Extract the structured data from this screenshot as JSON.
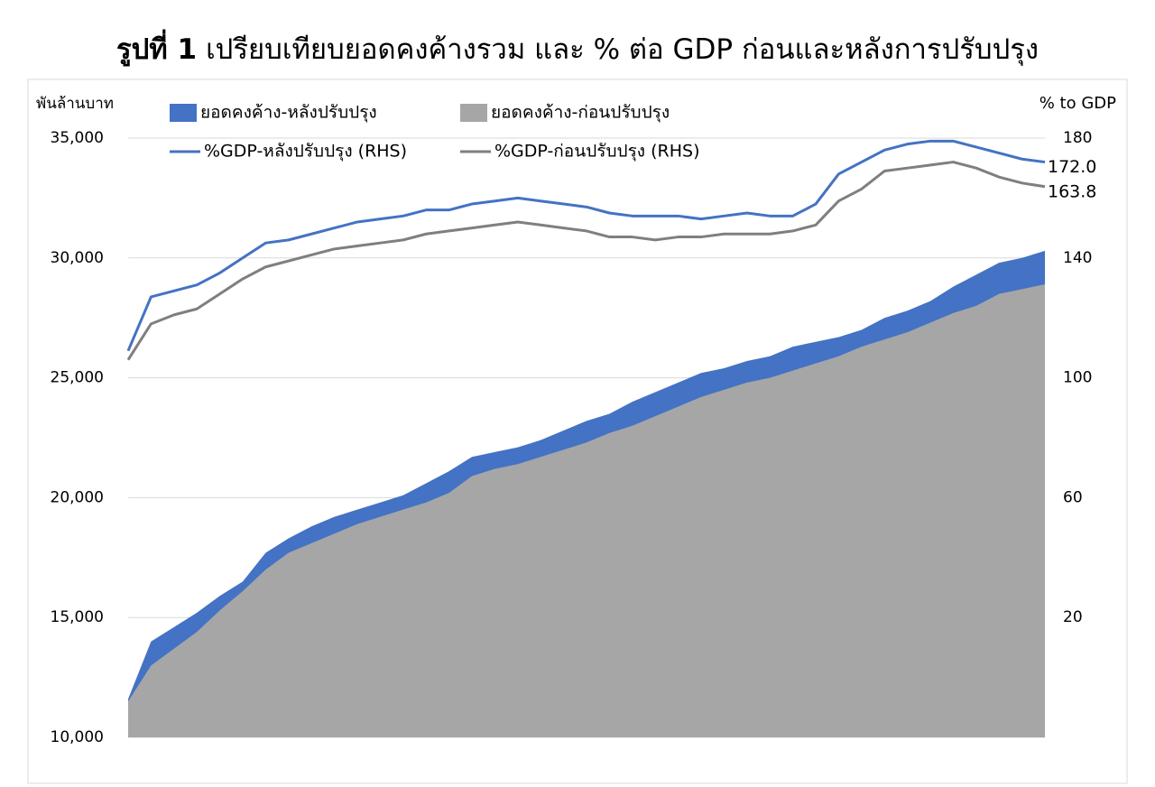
{
  "chart_data": {
    "type": "area",
    "title_parts": [
      "รูปที่ 1",
      "เปรียบเทียบยอดคงค้างรวม และ % ต่อ GDP ก่อนและหลังการปรับปรุง"
    ],
    "y_label": "พันล้านบาท",
    "y2_label": "% to GDP",
    "categories": [
      null,
      null,
      null,
      null,
      null,
      null,
      null,
      null,
      null,
      null,
      null,
      null,
      null,
      null,
      null,
      null,
      null,
      null,
      null,
      null,
      null,
      null,
      null,
      null,
      null,
      null,
      null,
      null,
      null,
      null,
      null,
      null,
      null,
      null,
      null,
      null,
      null,
      null,
      null,
      null,
      null
    ],
    "series": [
      {
        "name": "ยอดคงค้าง-หลังปรับปรุง",
        "type": "area",
        "color": "#4472c4",
        "values": [
          11600,
          14000,
          14600,
          15200,
          15900,
          16500,
          17700,
          18300,
          18800,
          19200,
          19500,
          19800,
          20100,
          20600,
          21100,
          21700,
          21900,
          22100,
          22400,
          22800,
          23200,
          23500,
          24000,
          24400,
          24800,
          25200,
          25400,
          25700,
          25900,
          26300,
          26500,
          26700,
          27000,
          27500,
          27800,
          28200,
          28800,
          29300,
          29800,
          30000,
          30300
        ]
      },
      {
        "name": "ยอดคงค้าง-ก่อนปรับปรุง",
        "type": "area",
        "color": "#a6a6a6",
        "values": [
          11500,
          13000,
          13700,
          14400,
          15300,
          16100,
          17000,
          17700,
          18100,
          18500,
          18900,
          19200,
          19500,
          19800,
          20200,
          20900,
          21200,
          21400,
          21700,
          22000,
          22300,
          22700,
          23000,
          23400,
          23800,
          24200,
          24500,
          24800,
          25000,
          25300,
          25600,
          25900,
          26300,
          26600,
          26900,
          27300,
          27700,
          28000,
          28500,
          28700,
          28900
        ]
      },
      {
        "name": "%GDP-หลังปรับปรุง (RHS)",
        "type": "line",
        "axis": "y2",
        "color": "#4472c4",
        "label_color": "#1f4e79",
        "values": [
          109,
          127,
          129,
          131,
          135,
          140,
          145,
          146,
          148,
          150,
          152,
          153,
          154,
          156,
          156,
          158,
          159,
          160,
          159,
          158,
          157,
          155,
          154,
          154,
          154,
          153,
          154,
          155,
          154,
          154,
          158,
          168,
          172,
          176,
          178,
          179,
          179,
          177,
          175,
          173,
          172
        ],
        "value_labels": [
          null,
          null,
          null,
          null,
          null,
          null,
          null,
          null,
          null,
          null,
          null,
          null,
          null,
          null,
          null,
          null,
          null,
          null,
          null,
          null,
          null,
          null,
          null,
          null,
          null,
          null,
          null,
          null,
          null,
          null,
          null,
          null,
          null,
          null,
          null,
          null,
          null,
          null,
          null,
          null,
          "172.0"
        ]
      },
      {
        "name": "%GDP-ก่อนปรับปรุง (RHS)",
        "type": "line",
        "axis": "y2",
        "color": "#7f7f7f",
        "label_color": "#595959",
        "values": [
          106,
          118,
          121,
          123,
          128,
          133,
          137,
          139,
          141,
          143,
          144,
          145,
          146,
          148,
          149,
          150,
          151,
          152,
          151,
          150,
          149,
          147,
          147,
          146,
          147,
          147,
          148,
          148,
          148,
          149,
          151,
          159,
          163,
          169,
          170,
          171,
          172,
          170,
          167,
          165,
          163.8
        ]
      }
    ],
    "ylim": [
      10000,
      35000
    ],
    "yticks": [
      {
        "value": 10000,
        "label": "10,000"
      },
      {
        "value": 15000,
        "label": "15,000"
      },
      {
        "value": 20000,
        "label": "20,000"
      },
      {
        "value": 25000,
        "label": "25,000"
      },
      {
        "value": 30000,
        "label": "30,000"
      },
      {
        "value": 35000,
        "label": "35,000"
      }
    ],
    "y2lim": [
      -20,
      180
    ],
    "y2ticks": [
      20,
      60,
      100,
      140,
      180
    ],
    "grid": true,
    "legend": "top"
  }
}
